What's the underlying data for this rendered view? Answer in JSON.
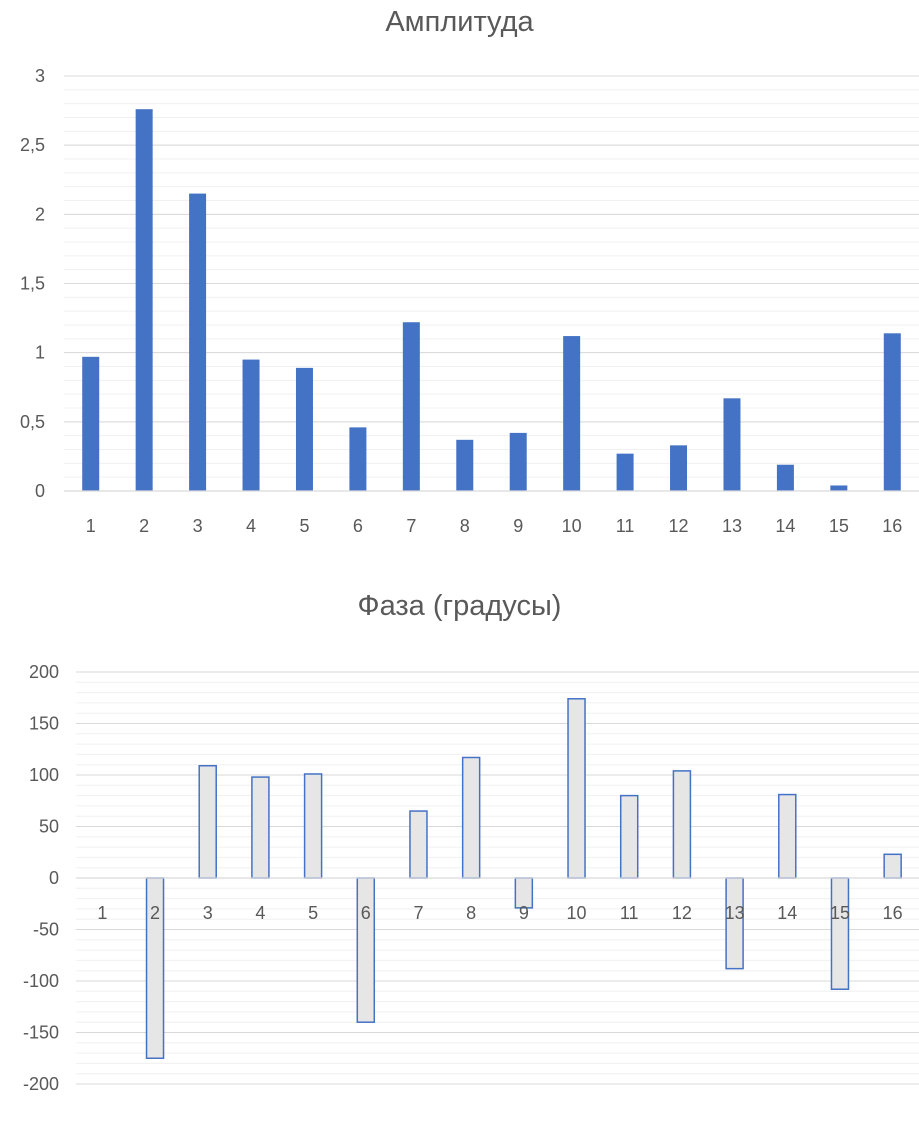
{
  "chart_data": [
    {
      "type": "bar",
      "title": "Амплитуда",
      "xlabel": "",
      "ylabel": "",
      "categories": [
        "1",
        "2",
        "3",
        "4",
        "5",
        "6",
        "7",
        "8",
        "9",
        "10",
        "11",
        "12",
        "13",
        "14",
        "15",
        "16"
      ],
      "values": [
        0.97,
        2.76,
        2.15,
        0.95,
        0.89,
        0.46,
        1.22,
        0.37,
        0.42,
        1.12,
        0.27,
        0.33,
        0.67,
        0.19,
        0.04,
        1.14
      ],
      "ylim": [
        0,
        3
      ],
      "yticks": [
        0,
        0.5,
        1,
        1.5,
        2,
        2.5,
        3
      ],
      "ytick_labels": [
        "0",
        "0,5",
        "1",
        "1,5",
        "2",
        "2,5",
        "3"
      ],
      "grid": true,
      "bar_color": "#4472c4"
    },
    {
      "type": "bar",
      "title": "Фаза (градусы)",
      "xlabel": "",
      "ylabel": "",
      "categories": [
        "1",
        "2",
        "3",
        "4",
        "5",
        "6",
        "7",
        "8",
        "9",
        "10",
        "11",
        "12",
        "13",
        "14",
        "15",
        "16"
      ],
      "values": [
        0,
        -175,
        109,
        98,
        101,
        -140,
        65,
        117,
        -29,
        174,
        80,
        104,
        -88,
        81,
        -108,
        23
      ],
      "ylim": [
        -200,
        200
      ],
      "yticks": [
        -200,
        -150,
        -100,
        -50,
        0,
        50,
        100,
        150,
        200
      ],
      "ytick_labels": [
        "-200",
        "-150",
        "-100",
        "-50",
        "0",
        "50",
        "100",
        "150",
        "200"
      ],
      "grid": true,
      "bar_fill": "#e7e6e6",
      "bar_stroke": "#4472c4"
    }
  ]
}
